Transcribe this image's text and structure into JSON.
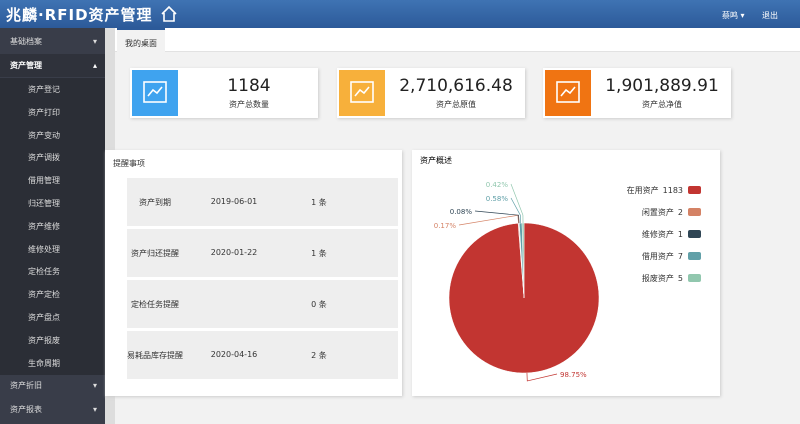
{
  "header": {
    "logo": "兆麟·RFID资产管理",
    "user": "蔡鸣",
    "logout": "退出"
  },
  "sidebar": {
    "menu": [
      {
        "label": "基础档案"
      },
      {
        "label": "资产管理",
        "children": [
          "资产登记",
          "资产打印",
          "资产变动",
          "资产调拨",
          "借用管理",
          "归还管理",
          "资产维修",
          "维修处理",
          "定检任务",
          "资产定检",
          "资产盘点",
          "资产报废",
          "生命周期"
        ]
      },
      {
        "label": "资产折旧"
      },
      {
        "label": "资产报表"
      }
    ]
  },
  "tab": "我的桌面",
  "cards": [
    {
      "value": "1184",
      "label": "资产总数量"
    },
    {
      "value": "2,710,616.48",
      "label": "资产总原值"
    },
    {
      "value": "1,901,889.91",
      "label": "资产总净值"
    }
  ],
  "reminders": {
    "title": "提醒事项",
    "rows": [
      [
        "资产到期",
        "2019-06-01",
        "1 条"
      ],
      [
        "资产归还提醒",
        "2020-01-22",
        "1 条"
      ],
      [
        "定检任务提醒",
        "",
        "0 条"
      ],
      [
        "易耗品库存提醒",
        "2020-04-16",
        "2 条"
      ]
    ]
  },
  "chart_data": {
    "type": "pie",
    "title": "资产概述",
    "categories": [
      "在用资产",
      "闲置资产",
      "维修资产",
      "借用资产",
      "报废资产"
    ],
    "values": [
      1183,
      2,
      1,
      7,
      5
    ],
    "value_labels": [
      "98.75%",
      "0.17%",
      "0.08%",
      "0.58%",
      "0.42%"
    ],
    "colors": [
      "#c23531",
      "#d48265",
      "#2f4554",
      "#61a0a8",
      "#91c7ae"
    ]
  }
}
